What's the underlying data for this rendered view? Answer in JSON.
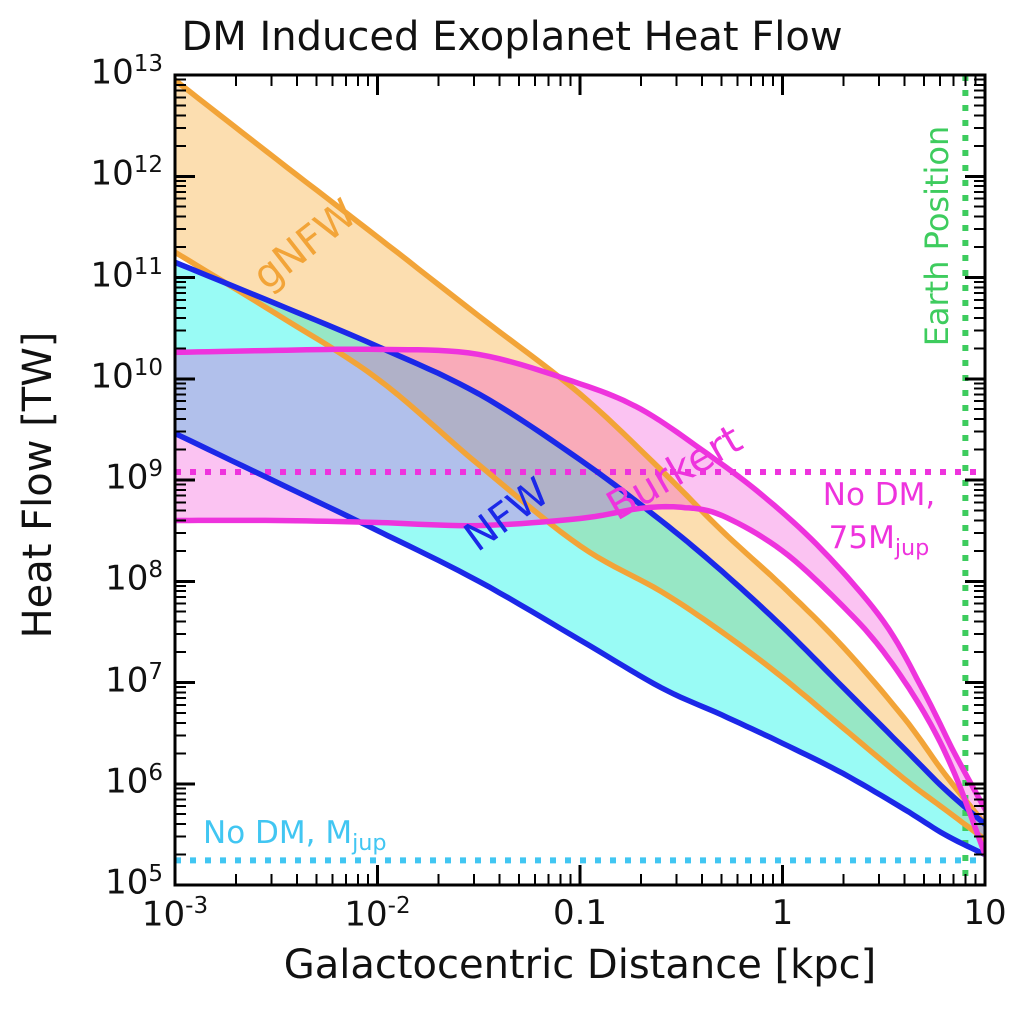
{
  "title": "DM Induced Exoplanet Heat Flow",
  "axes": {
    "xlabel": "Galactocentric Distance [kpc]",
    "ylabel": "Heat Flow [TW]",
    "x_scale": "log",
    "y_scale": "log",
    "x_log_range": [
      -3,
      1
    ],
    "y_log_range": [
      5,
      13
    ],
    "x_ticks": [
      {
        "text": "10",
        "sup": "-3",
        "value": 0.001
      },
      {
        "text": "10",
        "sup": "-2",
        "value": 0.01
      },
      {
        "text": "0.1",
        "sup": "",
        "value": 0.1
      },
      {
        "text": "1",
        "sup": "",
        "value": 1
      },
      {
        "text": "10",
        "sup": "",
        "value": 10
      }
    ],
    "y_tick_exponents": [
      13,
      12,
      11,
      10,
      9,
      8,
      7,
      6,
      5
    ],
    "frame_color": "#000000",
    "grid": false
  },
  "chart_data": {
    "type": "line",
    "description": "Dark-matter induced exoplanet heat flow bands vs galactocentric distance; each band spans local DM velocity/density uncertainty for a halo profile. Points are [log10(distance kpc), log10(heat flow TW)].",
    "series": [
      {
        "name": "gNFW",
        "line_color": "#F2A438",
        "fill_color": "rgba(245,160,30,0.35)",
        "label_rotation_deg": -38,
        "upper_log10": [
          [
            -3,
            12.95
          ],
          [
            -2.5,
            12.17
          ],
          [
            -2,
            11.4
          ],
          [
            -1.5,
            10.62
          ],
          [
            -1,
            9.85
          ],
          [
            -0.6,
            9.1
          ],
          [
            -0.3,
            8.5
          ],
          [
            0,
            7.95
          ],
          [
            0.3,
            7.35
          ],
          [
            0.6,
            6.65
          ],
          [
            0.8,
            6.1
          ],
          [
            1,
            5.6
          ]
        ],
        "lower_log10": [
          [
            -3,
            11.25
          ],
          [
            -2.5,
            10.64
          ],
          [
            -2,
            10.0
          ],
          [
            -1.5,
            9.15
          ],
          [
            -1,
            8.35
          ],
          [
            -0.6,
            7.9
          ],
          [
            -0.3,
            7.5
          ],
          [
            0,
            7.05
          ],
          [
            0.3,
            6.55
          ],
          [
            0.6,
            6.05
          ],
          [
            0.8,
            5.75
          ],
          [
            1,
            5.45
          ]
        ]
      },
      {
        "name": "NFW",
        "line_color": "#1B28E8",
        "fill_color": "rgba(0,245,230,0.40)",
        "label_rotation_deg": -36,
        "upper_log10": [
          [
            -3,
            11.15
          ],
          [
            -2.5,
            10.74
          ],
          [
            -2,
            10.32
          ],
          [
            -1.5,
            9.85
          ],
          [
            -1,
            9.2
          ],
          [
            -0.6,
            8.6
          ],
          [
            -0.3,
            8.1
          ],
          [
            0,
            7.55
          ],
          [
            0.3,
            6.95
          ],
          [
            0.6,
            6.35
          ],
          [
            0.8,
            5.95
          ],
          [
            1,
            5.6
          ]
        ],
        "lower_log10": [
          [
            -3,
            9.46
          ],
          [
            -2.5,
            8.98
          ],
          [
            -2,
            8.5
          ],
          [
            -1.5,
            8.0
          ],
          [
            -1,
            7.42
          ],
          [
            -0.6,
            6.95
          ],
          [
            -0.3,
            6.68
          ],
          [
            0,
            6.4
          ],
          [
            0.3,
            6.1
          ],
          [
            0.6,
            5.75
          ],
          [
            0.8,
            5.5
          ],
          [
            1,
            5.3
          ]
        ]
      },
      {
        "name": "Burkert",
        "line_color": "#EE33DD",
        "fill_color": "rgba(240,40,210,0.28)",
        "label_rotation_deg": -30,
        "upper_log10": [
          [
            -3,
            10.26
          ],
          [
            -2.5,
            10.28
          ],
          [
            -2,
            10.29
          ],
          [
            -1.5,
            10.24
          ],
          [
            -1,
            9.95
          ],
          [
            -0.7,
            9.7
          ],
          [
            -0.4,
            9.3
          ],
          [
            -0.1,
            8.85
          ],
          [
            0.2,
            8.3
          ],
          [
            0.5,
            7.6
          ],
          [
            0.7,
            6.9
          ],
          [
            0.85,
            6.3
          ],
          [
            1,
            5.75
          ]
        ],
        "lower_log10": [
          [
            -3,
            8.6
          ],
          [
            -2.5,
            8.6
          ],
          [
            -2,
            8.58
          ],
          [
            -1.5,
            8.55
          ],
          [
            -1,
            8.62
          ],
          [
            -0.7,
            8.72
          ],
          [
            -0.5,
            8.73
          ],
          [
            -0.3,
            8.65
          ],
          [
            0,
            8.3
          ],
          [
            0.3,
            7.75
          ],
          [
            0.5,
            7.3
          ],
          [
            0.7,
            6.7
          ],
          [
            0.85,
            6.1
          ],
          [
            1,
            5.3
          ]
        ]
      }
    ],
    "reference_lines": [
      {
        "name": "no-dm-75mjup",
        "orientation": "horizontal",
        "value_tw": 1200000000.0,
        "style": "dotted",
        "color": "#EE33DD",
        "label": {
          "line1": "No DM,",
          "line2_main": "75M",
          "line2_sub": "jup"
        }
      },
      {
        "name": "no-dm-mjup",
        "orientation": "horizontal",
        "value_tw": 175000.0,
        "style": "dotted",
        "color": "#41C6F2",
        "label": {
          "main": "No DM, M",
          "sub": "jup"
        }
      },
      {
        "name": "earth-position",
        "orientation": "vertical",
        "value_kpc": 8,
        "style": "dotted",
        "color": "#3ECC5E",
        "label": "Earth Position"
      }
    ]
  }
}
